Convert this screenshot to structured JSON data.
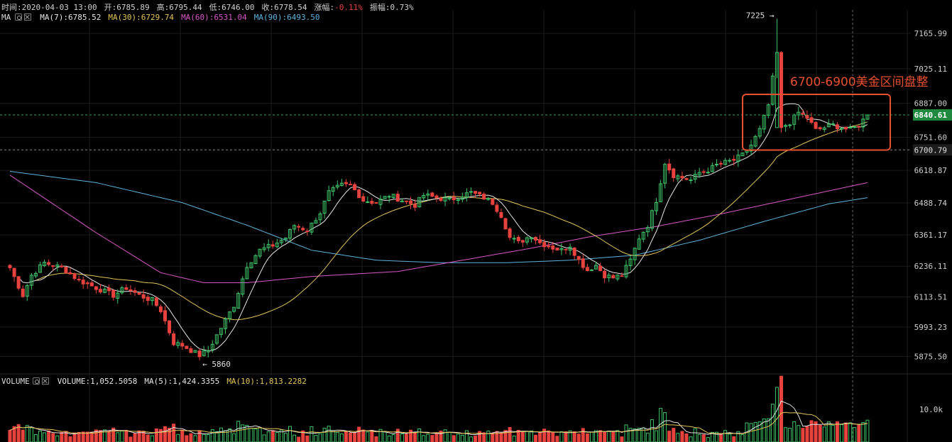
{
  "header": {
    "time_label": "时间:2020-04-03 13:00",
    "open_label": "开:6785.89",
    "high_label": "高:6795.44",
    "low_label": "低:6746.00",
    "close_label": "收:6778.54",
    "change_label": "涨幅:",
    "change_value": "-0.11%",
    "amplitude_label": "振幅:0.73%"
  },
  "ma_legend": {
    "name": "MA",
    "ma7": "MA(7):6785.52",
    "ma30": "MA(30):6729.74",
    "ma60": "MA(60):6531.04",
    "ma90": "MA(90):6493.50"
  },
  "volume_legend": {
    "name": "VOLUME",
    "volume": "VOLUME:1,052.5058",
    "ma5": "MA(5):1,424.3355",
    "ma10": "MA(10):1,813.2282"
  },
  "colors": {
    "up": "#3fc46a",
    "down": "#e8423f",
    "ma7": "#e6e6e6",
    "ma30": "#e4c45a",
    "ma60": "#d957c8",
    "ma90": "#5fb3e0",
    "annotation": "#e8502f",
    "current_price_tag": "#1f8a3f"
  },
  "chart_data": {
    "type": "candlestick",
    "price_axis_ticks": [
      "7165.99",
      "7025.11",
      "6887.00",
      "6751.60",
      "6618.87",
      "6488.74",
      "6361.17",
      "6236.11",
      "6113.51",
      "5993.23",
      "5875.50"
    ],
    "ylim": [
      5820,
      7260
    ],
    "current_price": 6840.61,
    "current_price_label": "6840.61",
    "reference_price": 6700.79,
    "reference_price_label": "6700.79",
    "high_marker": {
      "label": "7225 →",
      "value": 7225
    },
    "low_marker": {
      "label": "← 5860",
      "value": 5860
    },
    "annotation_text": "6700-6900美金区间盘整",
    "annotation_range": [
      6700,
      6900
    ],
    "volume_axis_tick": "10.0k",
    "close_anchors": [
      [
        0,
        6230
      ],
      [
        3,
        6120
      ],
      [
        5,
        6200
      ],
      [
        8,
        6250
      ],
      [
        12,
        6230
      ],
      [
        16,
        6180
      ],
      [
        20,
        6150
      ],
      [
        24,
        6120
      ],
      [
        27,
        6150
      ],
      [
        30,
        6120
      ],
      [
        33,
        6100
      ],
      [
        35,
        6060
      ],
      [
        38,
        5930
      ],
      [
        40,
        5920
      ],
      [
        44,
        5880
      ],
      [
        46,
        5900
      ],
      [
        49,
        5990
      ],
      [
        52,
        6080
      ],
      [
        55,
        6240
      ],
      [
        58,
        6300
      ],
      [
        61,
        6320
      ],
      [
        64,
        6350
      ],
      [
        66,
        6400
      ],
      [
        69,
        6380
      ],
      [
        72,
        6450
      ],
      [
        74,
        6530
      ],
      [
        77,
        6560
      ],
      [
        79,
        6560
      ],
      [
        82,
        6500
      ],
      [
        85,
        6490
      ],
      [
        88,
        6520
      ],
      [
        91,
        6500
      ],
      [
        94,
        6480
      ],
      [
        96,
        6520
      ],
      [
        99,
        6510
      ],
      [
        102,
        6500
      ],
      [
        105,
        6520
      ],
      [
        107,
        6530
      ],
      [
        110,
        6510
      ],
      [
        112,
        6490
      ],
      [
        114,
        6440
      ],
      [
        116,
        6350
      ],
      [
        118,
        6330
      ],
      [
        121,
        6360
      ],
      [
        123,
        6330
      ],
      [
        126,
        6310
      ],
      [
        128,
        6300
      ],
      [
        130,
        6320
      ],
      [
        132,
        6260
      ],
      [
        134,
        6220
      ],
      [
        136,
        6240
      ],
      [
        138,
        6200
      ],
      [
        140,
        6190
      ],
      [
        142,
        6200
      ],
      [
        144,
        6260
      ],
      [
        146,
        6350
      ],
      [
        148,
        6400
      ],
      [
        150,
        6500
      ],
      [
        152,
        6650
      ],
      [
        154,
        6600
      ],
      [
        156,
        6590
      ],
      [
        158,
        6580
      ],
      [
        160,
        6610
      ],
      [
        162,
        6620
      ],
      [
        164,
        6640
      ],
      [
        166,
        6650
      ],
      [
        168,
        6660
      ],
      [
        170,
        6680
      ],
      [
        172,
        6720
      ],
      [
        174,
        6780
      ],
      [
        176,
        6880
      ],
      [
        178,
        7090
      ],
      [
        179,
        6790
      ],
      [
        181,
        6810
      ],
      [
        183,
        6850
      ],
      [
        185,
        6830
      ],
      [
        187,
        6780
      ],
      [
        189,
        6790
      ],
      [
        191,
        6800
      ],
      [
        193,
        6790
      ],
      [
        195,
        6780
      ],
      [
        197,
        6800
      ],
      [
        199,
        6840
      ]
    ],
    "ma60_anchors": [
      [
        0,
        6600
      ],
      [
        20,
        6370
      ],
      [
        35,
        6210
      ],
      [
        45,
        6170
      ],
      [
        55,
        6170
      ],
      [
        70,
        6195
      ],
      [
        90,
        6215
      ],
      [
        105,
        6260
      ],
      [
        120,
        6305
      ],
      [
        135,
        6355
      ],
      [
        150,
        6395
      ],
      [
        165,
        6445
      ],
      [
        180,
        6500
      ],
      [
        199,
        6570
      ]
    ],
    "ma90_anchors": [
      [
        0,
        6615
      ],
      [
        20,
        6570
      ],
      [
        40,
        6490
      ],
      [
        55,
        6400
      ],
      [
        70,
        6300
      ],
      [
        85,
        6260
      ],
      [
        100,
        6250
      ],
      [
        115,
        6250
      ],
      [
        130,
        6260
      ],
      [
        145,
        6280
      ],
      [
        160,
        6340
      ],
      [
        175,
        6415
      ],
      [
        190,
        6485
      ],
      [
        199,
        6510
      ]
    ]
  }
}
